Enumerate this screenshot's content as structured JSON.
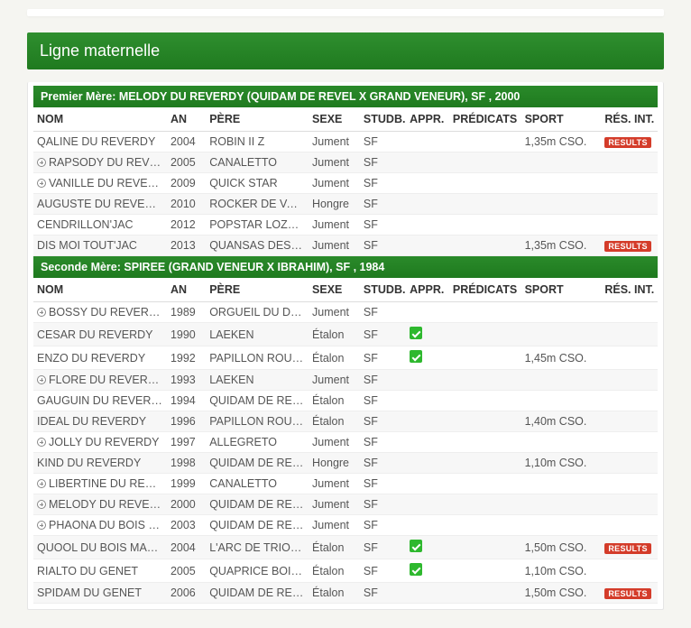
{
  "section_title": "Ligne maternelle",
  "columns": {
    "nom": "NOM",
    "an": "AN",
    "pere": "PÈRE",
    "sexe": "SEXE",
    "studb": "STUDB.",
    "appr": "APPR.",
    "predicats": "PRÉDICATS",
    "sport": "SPORT",
    "res": "RÉS. INT."
  },
  "results_label": "RESULTS",
  "groups": [
    {
      "title": "Premier Mère: MELODY DU REVERDY (QUIDAM DE REVEL X GRAND VENEUR), SF , 2000",
      "rows": [
        {
          "exp": false,
          "nom": "QALINE DU REVERDY",
          "an": "2004",
          "pere": "ROBIN II Z",
          "sexe": "Jument",
          "studb": "SF",
          "appr": false,
          "sport": "1,35m CSO.",
          "res": true
        },
        {
          "exp": true,
          "nom": "RAPSODY DU REVE…",
          "an": "2005",
          "pere": "CANALETTO",
          "sexe": "Jument",
          "studb": "SF",
          "appr": false,
          "sport": "",
          "res": false
        },
        {
          "exp": true,
          "nom": "VANILLE DU REVER…",
          "an": "2009",
          "pere": "QUICK STAR",
          "sexe": "Jument",
          "studb": "SF",
          "appr": false,
          "sport": "",
          "res": false
        },
        {
          "exp": false,
          "nom": "AUGUSTE DU REVERDY",
          "an": "2010",
          "pere": "ROCKER DE VAINS",
          "sexe": "Hongre",
          "studb": "SF",
          "appr": false,
          "sport": "",
          "res": false
        },
        {
          "exp": false,
          "nom": "CENDRILLON'JAC",
          "an": "2012",
          "pere": "POPSTAR LOZON…",
          "sexe": "Jument",
          "studb": "SF",
          "appr": false,
          "sport": "",
          "res": false
        },
        {
          "exp": false,
          "nom": "DIS MOI TOUT'JAC",
          "an": "2013",
          "pere": "QUANSAS DES IV…",
          "sexe": "Jument",
          "studb": "SF",
          "appr": false,
          "sport": "1,35m CSO.",
          "res": true
        }
      ]
    },
    {
      "title": "Seconde Mère: SPIREE (GRAND VENEUR X IBRAHIM), SF , 1984",
      "rows": [
        {
          "exp": true,
          "nom": "BOSSY DU REVERDY",
          "an": "1989",
          "pere": "ORGUEIL DU DO…",
          "sexe": "Jument",
          "studb": "SF",
          "appr": false,
          "sport": "",
          "res": false
        },
        {
          "exp": false,
          "nom": "CESAR DU REVERDY",
          "an": "1990",
          "pere": "LAEKEN",
          "sexe": "Étalon",
          "studb": "SF",
          "appr": true,
          "sport": "",
          "res": false
        },
        {
          "exp": false,
          "nom": "ENZO DU REVERDY",
          "an": "1992",
          "pere": "PAPILLON ROUGE",
          "sexe": "Étalon",
          "studb": "SF",
          "appr": true,
          "sport": "1,45m CSO.",
          "res": false
        },
        {
          "exp": true,
          "nom": "FLORE DU REVERDY",
          "an": "1993",
          "pere": "LAEKEN",
          "sexe": "Jument",
          "studb": "SF",
          "appr": false,
          "sport": "",
          "res": false
        },
        {
          "exp": false,
          "nom": "GAUGUIN DU REVERDY",
          "an": "1994",
          "pere": "QUIDAM DE REVEL",
          "sexe": "Étalon",
          "studb": "SF",
          "appr": false,
          "sport": "",
          "res": false
        },
        {
          "exp": false,
          "nom": "IDEAL DU REVERDY",
          "an": "1996",
          "pere": "PAPILLON ROUGE",
          "sexe": "Étalon",
          "studb": "SF",
          "appr": false,
          "sport": "1,40m CSO.",
          "res": false
        },
        {
          "exp": true,
          "nom": "JOLLY DU REVERDY",
          "an": "1997",
          "pere": "ALLEGRETO",
          "sexe": "Jument",
          "studb": "SF",
          "appr": false,
          "sport": "",
          "res": false
        },
        {
          "exp": false,
          "nom": "KIND DU REVERDY",
          "an": "1998",
          "pere": "QUIDAM DE REVEL",
          "sexe": "Hongre",
          "studb": "SF",
          "appr": false,
          "sport": "1,10m CSO.",
          "res": false
        },
        {
          "exp": true,
          "nom": "LIBERTINE DU REVE…",
          "an": "1999",
          "pere": "CANALETTO",
          "sexe": "Jument",
          "studb": "SF",
          "appr": false,
          "sport": "",
          "res": false
        },
        {
          "exp": true,
          "nom": "MELODY DU REVER…",
          "an": "2000",
          "pere": "QUIDAM DE REVEL",
          "sexe": "Jument",
          "studb": "SF",
          "appr": false,
          "sport": "",
          "res": false
        },
        {
          "exp": true,
          "nom": "PHAONA DU BOIS …",
          "an": "2003",
          "pere": "QUIDAM DE REVEL",
          "sexe": "Jument",
          "studb": "SF",
          "appr": false,
          "sport": "",
          "res": false
        },
        {
          "exp": false,
          "nom": "QUOOL DU BOIS MA…",
          "an": "2004",
          "pere": "L'ARC DE TRIOMP…",
          "sexe": "Étalon",
          "studb": "SF",
          "appr": true,
          "sport": "1,50m CSO.",
          "res": true
        },
        {
          "exp": false,
          "nom": "RIALTO DU GENET",
          "an": "2005",
          "pere": "QUAPRICE BOIS …",
          "sexe": "Étalon",
          "studb": "SF",
          "appr": true,
          "sport": "1,10m CSO.",
          "res": false
        },
        {
          "exp": false,
          "nom": "SPIDAM DU GENET",
          "an": "2006",
          "pere": "QUIDAM DE REVEL",
          "sexe": "Étalon",
          "studb": "SF",
          "appr": false,
          "sport": "1,50m CSO.",
          "res": true
        }
      ]
    }
  ]
}
